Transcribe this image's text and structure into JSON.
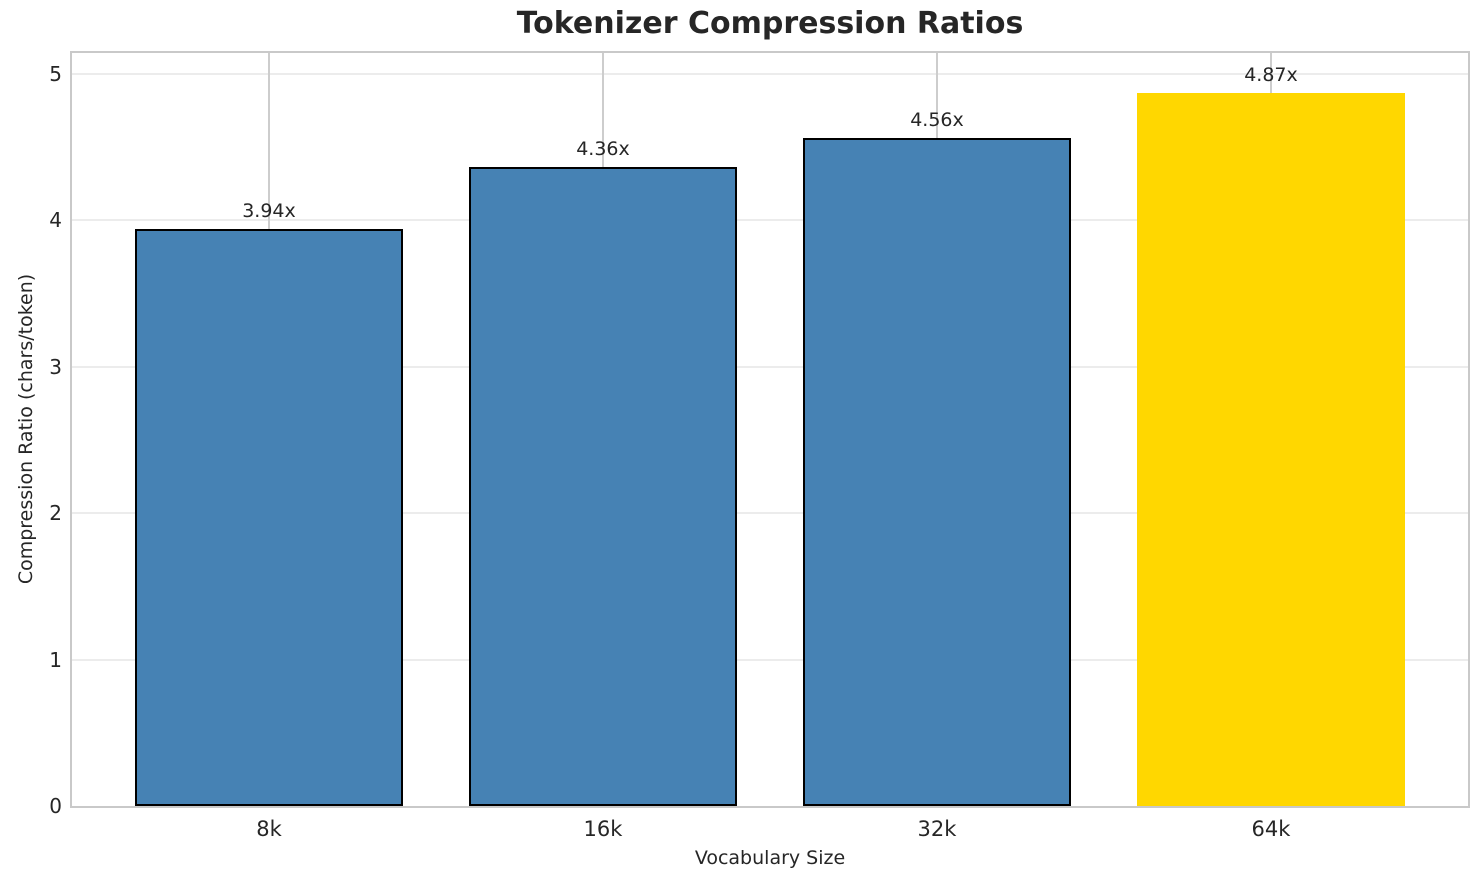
{
  "figure": {
    "title": "Tokenizer Compression Ratios"
  },
  "chart_data": {
    "type": "bar",
    "title": "Tokenizer Compression Ratios",
    "categories": [
      "8k",
      "16k",
      "32k",
      "64k"
    ],
    "values": [
      3.94,
      4.36,
      4.56,
      4.87
    ],
    "value_labels": [
      "3.94x",
      "4.36x",
      "4.56x",
      "4.87x"
    ],
    "bar_colors": [
      "#4682B4",
      "#4682B4",
      "#4682B4",
      "#FFD700"
    ],
    "bar_edge_colors": [
      "#000000",
      "#000000",
      "#000000",
      "none"
    ],
    "highlighted_category": "64k",
    "xlabel": "Vocabulary Size",
    "ylabel": "Compression Ratio (chars/token)",
    "ylim": [
      0,
      5.14
    ],
    "yticks": [
      0,
      1,
      2,
      3,
      4,
      5
    ],
    "ytick_labels": [
      "0",
      "1",
      "2",
      "3",
      "4",
      "5"
    ],
    "grid": "both",
    "legend": "none",
    "accent_color": "#FFD700",
    "base_color": "#4682B4"
  }
}
